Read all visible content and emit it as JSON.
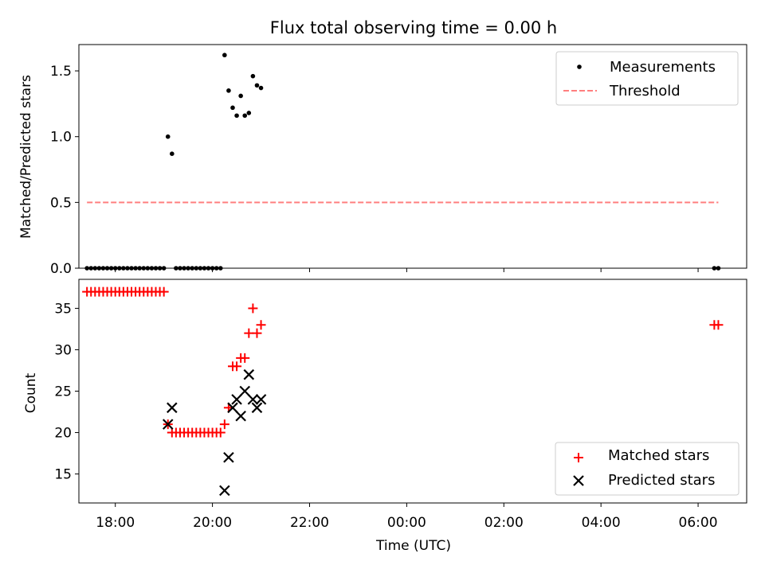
{
  "chart_data": {
    "title": "Flux total observing time = 0.00 h",
    "x_axis": {
      "label": "Time (UTC)",
      "ticks": [
        "18:00",
        "20:00",
        "22:00",
        "00:00",
        "02:00",
        "04:00",
        "06:00"
      ],
      "range_hours_since_start": [
        "17:15 (day 1)",
        "07:00 (day 2)"
      ]
    },
    "panels": [
      {
        "type": "scatter",
        "ylabel": "Matched/Predicted stars",
        "ylim": [
          0.0,
          1.7
        ],
        "yticks": [
          "0.0",
          "0.5",
          "1.0",
          "1.5"
        ],
        "legend_position": "top-right",
        "series": [
          {
            "name": "Measurements",
            "marker": "dot",
            "color": "#000000",
            "points": [
              [
                "17:25",
                0
              ],
              [
                "17:30",
                0
              ],
              [
                "17:35",
                0
              ],
              [
                "17:40",
                0
              ],
              [
                "17:45",
                0
              ],
              [
                "17:50",
                0
              ],
              [
                "17:55",
                0
              ],
              [
                "18:00",
                0
              ],
              [
                "18:05",
                0
              ],
              [
                "18:10",
                0
              ],
              [
                "18:15",
                0
              ],
              [
                "18:20",
                0
              ],
              [
                "18:25",
                0
              ],
              [
                "18:30",
                0
              ],
              [
                "18:35",
                0
              ],
              [
                "18:40",
                0
              ],
              [
                "18:45",
                0
              ],
              [
                "18:50",
                0
              ],
              [
                "18:55",
                0
              ],
              [
                "19:00",
                0
              ],
              [
                "19:05",
                1.0
              ],
              [
                "19:10",
                0.87
              ],
              [
                "19:15",
                0
              ],
              [
                "19:20",
                0
              ],
              [
                "19:25",
                0
              ],
              [
                "19:30",
                0
              ],
              [
                "19:35",
                0
              ],
              [
                "19:40",
                0
              ],
              [
                "19:45",
                0
              ],
              [
                "19:50",
                0
              ],
              [
                "19:55",
                0
              ],
              [
                "20:00",
                0
              ],
              [
                "20:05",
                0
              ],
              [
                "20:10",
                0
              ],
              [
                "20:15",
                1.62
              ],
              [
                "20:20",
                1.35
              ],
              [
                "20:25",
                1.22
              ],
              [
                "20:30",
                1.16
              ],
              [
                "20:35",
                1.31
              ],
              [
                "20:40",
                1.16
              ],
              [
                "20:45",
                1.18
              ],
              [
                "20:50",
                1.46
              ],
              [
                "20:55",
                1.39
              ],
              [
                "21:00",
                1.37
              ],
              [
                "06:20",
                0
              ],
              [
                "06:25",
                0
              ]
            ]
          },
          {
            "name": "Threshold",
            "marker": "dashed-line",
            "color": "#ff7f7f",
            "points": [
              [
                "17:25",
                0.5
              ],
              [
                "06:25",
                0.5
              ]
            ]
          }
        ]
      },
      {
        "type": "scatter",
        "ylabel": "Count",
        "ylim": [
          11.5,
          38.5
        ],
        "yticks": [
          "15",
          "20",
          "25",
          "30",
          "35"
        ],
        "legend_position": "bottom-right",
        "series": [
          {
            "name": "Matched stars",
            "marker": "plus",
            "color": "#ff0000",
            "points": [
              [
                "17:25",
                37
              ],
              [
                "17:30",
                37
              ],
              [
                "17:35",
                37
              ],
              [
                "17:40",
                37
              ],
              [
                "17:45",
                37
              ],
              [
                "17:50",
                37
              ],
              [
                "17:55",
                37
              ],
              [
                "18:00",
                37
              ],
              [
                "18:05",
                37
              ],
              [
                "18:10",
                37
              ],
              [
                "18:15",
                37
              ],
              [
                "18:20",
                37
              ],
              [
                "18:25",
                37
              ],
              [
                "18:30",
                37
              ],
              [
                "18:35",
                37
              ],
              [
                "18:40",
                37
              ],
              [
                "18:45",
                37
              ],
              [
                "18:50",
                37
              ],
              [
                "18:55",
                37
              ],
              [
                "19:00",
                37
              ],
              [
                "19:05",
                21
              ],
              [
                "19:10",
                20
              ],
              [
                "19:15",
                20
              ],
              [
                "19:20",
                20
              ],
              [
                "19:25",
                20
              ],
              [
                "19:30",
                20
              ],
              [
                "19:35",
                20
              ],
              [
                "19:40",
                20
              ],
              [
                "19:45",
                20
              ],
              [
                "19:50",
                20
              ],
              [
                "19:55",
                20
              ],
              [
                "20:00",
                20
              ],
              [
                "20:05",
                20
              ],
              [
                "20:10",
                20
              ],
              [
                "20:15",
                21
              ],
              [
                "20:20",
                23
              ],
              [
                "20:25",
                28
              ],
              [
                "20:30",
                28
              ],
              [
                "20:35",
                29
              ],
              [
                "20:40",
                29
              ],
              [
                "20:45",
                32
              ],
              [
                "20:50",
                35
              ],
              [
                "20:55",
                32
              ],
              [
                "21:00",
                33
              ],
              [
                "06:20",
                33
              ],
              [
                "06:25",
                33
              ]
            ]
          },
          {
            "name": "Predicted stars",
            "marker": "x",
            "color": "#000000",
            "points": [
              [
                "19:05",
                21
              ],
              [
                "19:10",
                23
              ],
              [
                "20:15",
                13
              ],
              [
                "20:20",
                17
              ],
              [
                "20:25",
                23
              ],
              [
                "20:30",
                24
              ],
              [
                "20:35",
                22
              ],
              [
                "20:40",
                25
              ],
              [
                "20:45",
                27
              ],
              [
                "20:50",
                24
              ],
              [
                "20:55",
                23
              ],
              [
                "21:00",
                24
              ]
            ]
          }
        ]
      }
    ]
  }
}
